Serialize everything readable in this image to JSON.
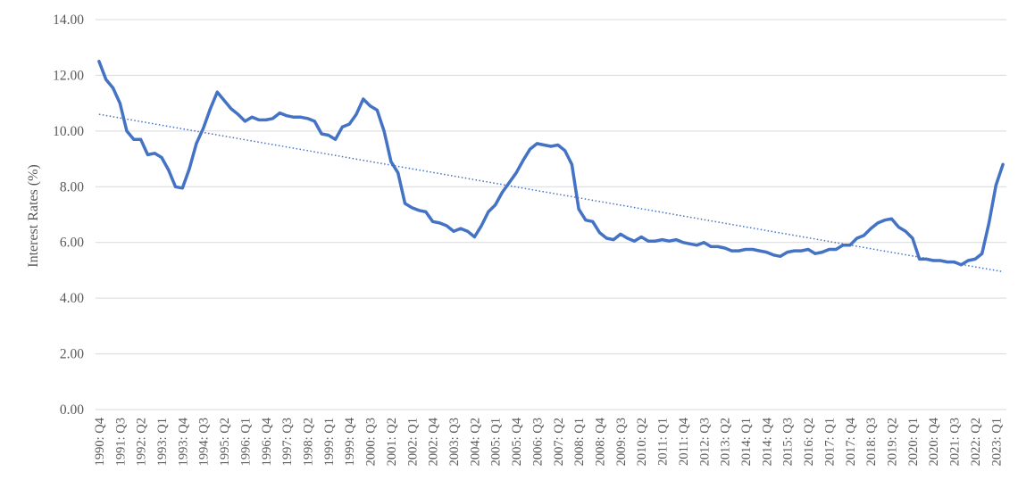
{
  "chart_data": {
    "type": "line",
    "ylabel": "Interest Rates (%)",
    "ylim": [
      0,
      14
    ],
    "y_ticks": [
      "0.00",
      "2.00",
      "4.00",
      "6.00",
      "8.00",
      "10.00",
      "12.00",
      "14.00"
    ],
    "x_tick_labels": [
      "1990: Q4",
      "1991: Q3",
      "1992: Q2",
      "1993: Q1",
      "1993: Q4",
      "1994: Q3",
      "1995: Q2",
      "1996: Q1",
      "1996: Q4",
      "1997: Q3",
      "1998: Q2",
      "1999: Q1",
      "1999: Q4",
      "2000: Q3",
      "2001: Q2",
      "2002: Q1",
      "2002: Q4",
      "2003: Q3",
      "2004: Q2",
      "2005: Q1",
      "2005: Q4",
      "2006: Q3",
      "2007: Q2",
      "2008: Q1",
      "2008: Q4",
      "2009: Q3",
      "2010: Q2",
      "2011: Q1",
      "2011: Q4",
      "2012: Q3",
      "2013: Q2",
      "2014: Q1",
      "2014: Q4",
      "2015: Q3",
      "2016: Q2",
      "2017: Q1",
      "2017: Q4",
      "2018: Q3",
      "2019: Q2",
      "2020: Q1",
      "2020: Q4",
      "2021: Q3",
      "2022: Q2",
      "2023: Q1"
    ],
    "gridlines": "horizontal",
    "legend": "none",
    "series": [
      {
        "color": "#4472C4",
        "values": [
          12.5,
          11.85,
          11.55,
          11.0,
          10.0,
          9.7,
          9.7,
          9.15,
          9.2,
          9.05,
          8.6,
          8.0,
          7.95,
          8.65,
          9.55,
          10.1,
          10.8,
          11.4,
          11.1,
          10.8,
          10.6,
          10.35,
          10.5,
          10.4,
          10.4,
          10.45,
          10.65,
          10.55,
          10.5,
          10.5,
          10.45,
          10.35,
          9.9,
          9.85,
          9.7,
          10.15,
          10.25,
          10.6,
          11.15,
          10.9,
          10.75,
          10.0,
          8.9,
          8.5,
          7.4,
          7.25,
          7.15,
          7.1,
          6.75,
          6.7,
          6.6,
          6.4,
          6.5,
          6.4,
          6.2,
          6.6,
          7.1,
          7.35,
          7.8,
          8.15,
          8.5,
          8.95,
          9.35,
          9.55,
          9.5,
          9.45,
          9.5,
          9.3,
          8.8,
          7.2,
          6.8,
          6.75,
          6.35,
          6.15,
          6.1,
          6.3,
          6.15,
          6.05,
          6.2,
          6.05,
          6.05,
          6.1,
          6.05,
          6.1,
          6.0,
          5.95,
          5.9,
          6.0,
          5.85,
          5.85,
          5.8,
          5.7,
          5.7,
          5.75,
          5.75,
          5.7,
          5.65,
          5.55,
          5.5,
          5.65,
          5.7,
          5.7,
          5.75,
          5.6,
          5.65,
          5.75,
          5.75,
          5.9,
          5.9,
          6.15,
          6.25,
          6.5,
          6.7,
          6.8,
          6.85,
          6.55,
          6.4,
          6.15,
          5.4,
          5.4,
          5.35,
          5.35,
          5.3,
          5.3,
          5.2,
          5.35,
          5.4,
          5.6,
          6.7,
          8.05,
          8.8
        ]
      }
    ],
    "trendline": {
      "type": "linear",
      "style": "dotted",
      "color": "#4472C4",
      "start_value": 10.6,
      "end_value": 4.95
    }
  }
}
